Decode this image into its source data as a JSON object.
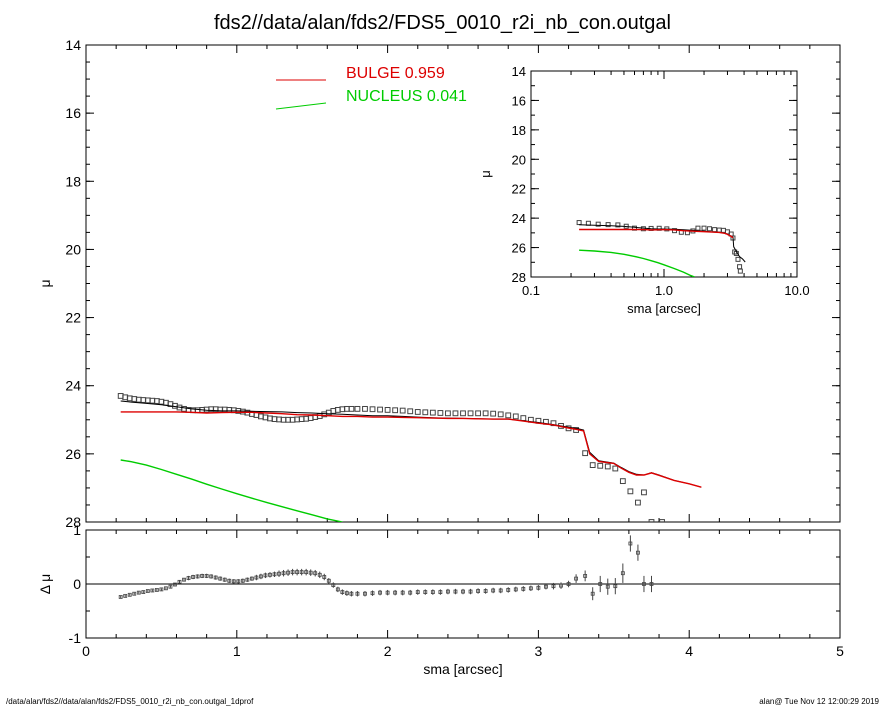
{
  "title": "fds2//data/alan/fds2/FDS5_0010_r2i_nb_con.outgal",
  "footer_left": "/data/alan/fds2//data/alan/fds2/FDS5_0010_r2i_nb_con.outgal_1dprof",
  "footer_right": "alan@  Tue Nov 12 12:00:29 2019",
  "colors": {
    "bulge": "#dd0000",
    "nucleus": "#00cc00",
    "total": "#000000",
    "data": "#444444"
  },
  "chart_data": [
    {
      "id": "main",
      "type": "scatter",
      "xlabel": "sma [arcsec]",
      "ylabel": "μ",
      "xlim": [
        0,
        5
      ],
      "ylim": [
        28,
        14
      ],
      "yticks": [
        14,
        16,
        18,
        20,
        22,
        24,
        26,
        28
      ],
      "xticks": [
        0,
        1,
        2,
        3,
        4,
        5
      ],
      "legend": [
        {
          "label": "BULGE",
          "value": "0.959",
          "color": "#dd0000"
        },
        {
          "label": "NUCLEUS",
          "value": "0.041",
          "color": "#00cc00"
        }
      ],
      "legend_position": "top-center",
      "series": [
        {
          "name": "data",
          "style": "square-markers",
          "x": [
            0.23,
            0.26,
            0.29,
            0.32,
            0.35,
            0.38,
            0.41,
            0.44,
            0.47,
            0.5,
            0.53,
            0.56,
            0.59,
            0.62,
            0.65,
            0.68,
            0.71,
            0.74,
            0.77,
            0.8,
            0.83,
            0.86,
            0.89,
            0.92,
            0.95,
            0.98,
            1.01,
            1.04,
            1.07,
            1.1,
            1.13,
            1.16,
            1.19,
            1.22,
            1.25,
            1.28,
            1.31,
            1.34,
            1.37,
            1.4,
            1.43,
            1.46,
            1.49,
            1.52,
            1.55,
            1.58,
            1.61,
            1.64,
            1.67,
            1.7,
            1.73,
            1.76,
            1.8,
            1.85,
            1.9,
            1.95,
            2.0,
            2.05,
            2.1,
            2.15,
            2.2,
            2.25,
            2.3,
            2.35,
            2.4,
            2.45,
            2.5,
            2.55,
            2.6,
            2.65,
            2.7,
            2.75,
            2.8,
            2.85,
            2.9,
            2.95,
            3.0,
            3.05,
            3.1,
            3.15,
            3.2,
            3.25,
            3.31,
            3.36,
            3.41,
            3.46,
            3.51,
            3.56,
            3.61,
            3.66,
            3.7,
            3.75,
            3.82
          ],
          "y": [
            24.3,
            24.34,
            24.37,
            24.39,
            24.41,
            24.42,
            24.43,
            24.44,
            24.45,
            24.47,
            24.5,
            24.54,
            24.59,
            24.64,
            24.68,
            24.71,
            24.72,
            24.72,
            24.71,
            24.7,
            24.69,
            24.69,
            24.7,
            24.7,
            24.71,
            24.72,
            24.74,
            24.76,
            24.79,
            24.83,
            24.86,
            24.9,
            24.93,
            24.96,
            24.98,
            24.99,
            25.0,
            25.0,
            25.0,
            24.99,
            24.98,
            24.97,
            24.95,
            24.92,
            24.89,
            24.84,
            24.79,
            24.74,
            24.71,
            24.69,
            24.68,
            24.68,
            24.68,
            24.68,
            24.69,
            24.7,
            24.71,
            24.72,
            24.73,
            24.75,
            24.77,
            24.78,
            24.79,
            24.8,
            24.81,
            24.81,
            24.81,
            24.81,
            24.81,
            24.81,
            24.82,
            24.84,
            24.87,
            24.9,
            24.95,
            25.0,
            25.03,
            25.06,
            25.1,
            25.18,
            25.25,
            25.3,
            25.98,
            26.33,
            26.35,
            26.37,
            26.43,
            26.8,
            27.1,
            27.43,
            27.13,
            28.0,
            28.0
          ]
        },
        {
          "name": "total",
          "style": "line",
          "x": [
            0.23,
            0.3,
            0.4,
            0.5,
            0.6,
            0.7,
            0.8,
            0.9,
            1.0,
            1.1,
            1.2,
            1.3,
            1.4,
            1.5,
            1.6,
            1.7,
            1.8,
            1.9,
            2.0,
            2.1,
            2.2,
            2.3,
            2.4,
            2.5,
            2.6,
            2.7,
            2.8,
            2.9,
            3.0,
            3.1,
            3.2,
            3.25,
            3.3,
            3.34,
            3.4,
            3.5,
            3.55,
            3.6,
            3.65,
            3.7,
            3.75,
            3.8,
            3.9,
            4.0,
            4.08
          ],
          "y": [
            24.45,
            24.48,
            24.52,
            24.56,
            24.62,
            24.68,
            24.72,
            24.74,
            24.74,
            24.75,
            24.76,
            24.77,
            24.79,
            24.8,
            24.82,
            24.84,
            24.86,
            24.88,
            24.88,
            24.9,
            24.92,
            24.94,
            24.95,
            24.96,
            24.97,
            24.98,
            24.98,
            25.03,
            25.08,
            25.14,
            25.22,
            25.25,
            25.3,
            25.95,
            26.2,
            26.27,
            26.4,
            26.52,
            26.6,
            26.62,
            26.55,
            26.62,
            26.78,
            26.88,
            26.98
          ]
        },
        {
          "name": "bulge",
          "style": "line",
          "color": "#dd0000",
          "x": [
            0.23,
            0.3,
            0.4,
            0.5,
            0.6,
            0.7,
            0.8,
            0.9,
            1.0,
            1.1,
            1.2,
            1.3,
            1.4,
            1.5,
            1.6,
            1.7,
            1.8,
            1.9,
            2.0,
            2.1,
            2.2,
            2.3,
            2.4,
            2.5,
            2.6,
            2.7,
            2.8,
            2.9,
            3.0,
            3.1,
            3.2,
            3.25,
            3.3,
            3.34,
            3.4,
            3.5,
            3.55,
            3.6,
            3.65,
            3.7,
            3.75,
            3.8,
            3.9,
            4.0,
            4.08
          ],
          "y": [
            24.77,
            24.77,
            24.77,
            24.77,
            24.77,
            24.78,
            24.8,
            24.79,
            24.78,
            24.78,
            24.8,
            24.82,
            24.85,
            24.86,
            24.88,
            24.9,
            24.9,
            24.92,
            24.92,
            24.93,
            24.94,
            24.95,
            24.96,
            24.96,
            24.97,
            24.98,
            24.98,
            25.04,
            25.1,
            25.15,
            25.24,
            25.28,
            25.33,
            26.0,
            26.22,
            26.28,
            26.42,
            26.54,
            26.62,
            26.62,
            26.56,
            26.63,
            26.78,
            26.88,
            26.98
          ]
        },
        {
          "name": "nucleus",
          "style": "line",
          "color": "#00cc00",
          "x": [
            0.23,
            0.3,
            0.4,
            0.5,
            0.6,
            0.7,
            0.8,
            0.9,
            1.0,
            1.1,
            1.2,
            1.3,
            1.4,
            1.5,
            1.6,
            1.7
          ],
          "y": [
            26.18,
            26.23,
            26.33,
            26.46,
            26.6,
            26.74,
            26.89,
            27.03,
            27.17,
            27.3,
            27.43,
            27.55,
            27.67,
            27.79,
            27.91,
            28.0
          ]
        }
      ]
    },
    {
      "id": "inset",
      "type": "line",
      "xlabel": "sma [arcsec]",
      "ylabel": "μ",
      "xscale": "log",
      "xlim": [
        0.1,
        10
      ],
      "ylim": [
        28,
        14
      ],
      "xticks": [
        {
          "v": 0.1,
          "label": "0.1"
        },
        {
          "v": 1,
          "label": "1.0"
        },
        {
          "v": 10,
          "label": "10.0"
        }
      ],
      "yticks": [
        14,
        16,
        18,
        20,
        22,
        24,
        26,
        28
      ],
      "series": [
        {
          "name": "data",
          "style": "square-markers",
          "x": [
            0.23,
            0.27,
            0.32,
            0.38,
            0.45,
            0.52,
            0.6,
            0.7,
            0.8,
            0.92,
            1.05,
            1.2,
            1.35,
            1.5,
            1.65,
            1.8,
            2.0,
            2.2,
            2.4,
            2.6,
            2.8,
            3.0,
            3.2,
            3.3,
            3.4,
            3.5,
            3.6,
            3.7,
            3.75
          ],
          "y": [
            24.3,
            24.35,
            24.41,
            24.44,
            24.46,
            24.55,
            24.68,
            24.72,
            24.7,
            24.69,
            24.73,
            24.85,
            24.96,
            24.99,
            24.87,
            24.68,
            24.68,
            24.72,
            24.78,
            24.81,
            24.83,
            24.93,
            25.08,
            25.35,
            26.3,
            26.4,
            26.8,
            27.3,
            27.6
          ]
        },
        {
          "name": "total",
          "style": "line",
          "x": [
            0.23,
            0.3,
            0.4,
            0.5,
            0.6,
            0.7,
            0.8,
            0.9,
            1.0,
            1.2,
            1.4,
            1.6,
            1.8,
            2.0,
            2.3,
            2.6,
            2.9,
            3.2,
            3.3,
            3.34,
            3.5,
            3.7,
            3.9,
            4.08
          ],
          "y": [
            24.45,
            24.48,
            24.52,
            24.56,
            24.62,
            24.68,
            24.72,
            24.74,
            24.74,
            24.76,
            24.79,
            24.82,
            24.86,
            24.88,
            24.94,
            24.97,
            25.03,
            25.22,
            25.3,
            25.95,
            26.27,
            26.62,
            26.78,
            26.98
          ]
        },
        {
          "name": "bulge",
          "style": "line",
          "color": "#dd0000",
          "x": [
            0.23,
            0.3,
            0.4,
            0.5,
            0.6,
            0.7,
            0.8,
            0.9,
            1.0,
            1.2,
            1.4,
            1.6,
            1.8,
            2.0,
            2.3,
            2.6,
            2.9,
            3.2,
            3.3
          ],
          "y": [
            24.77,
            24.77,
            24.77,
            24.77,
            24.77,
            24.78,
            24.8,
            24.79,
            24.78,
            24.8,
            24.85,
            24.88,
            24.9,
            24.92,
            24.95,
            24.97,
            25.04,
            25.24,
            25.33
          ]
        },
        {
          "name": "nucleus",
          "style": "line",
          "color": "#00cc00",
          "x": [
            0.23,
            0.3,
            0.4,
            0.5,
            0.6,
            0.7,
            0.8,
            0.9,
            1.0,
            1.2,
            1.4,
            1.6,
            1.7
          ],
          "y": [
            26.18,
            26.23,
            26.33,
            26.46,
            26.6,
            26.74,
            26.89,
            27.03,
            27.17,
            27.43,
            27.67,
            27.91,
            28.0
          ]
        }
      ]
    },
    {
      "id": "residual",
      "type": "scatter",
      "xlabel": "sma [arcsec]",
      "ylabel": "Δ μ",
      "xlim": [
        0,
        5
      ],
      "ylim": [
        -1,
        1
      ],
      "yticks": [
        -1,
        0,
        1
      ],
      "xticks": [
        0,
        1,
        2,
        3,
        4,
        5
      ],
      "zero_line": true,
      "series": [
        {
          "name": "residual",
          "style": "markers-with-error-bars",
          "x": [
            0.23,
            0.26,
            0.29,
            0.32,
            0.35,
            0.38,
            0.41,
            0.44,
            0.47,
            0.5,
            0.53,
            0.56,
            0.59,
            0.62,
            0.65,
            0.68,
            0.71,
            0.74,
            0.77,
            0.8,
            0.83,
            0.86,
            0.89,
            0.92,
            0.95,
            0.98,
            1.01,
            1.04,
            1.07,
            1.1,
            1.13,
            1.16,
            1.19,
            1.22,
            1.25,
            1.28,
            1.31,
            1.34,
            1.37,
            1.4,
            1.43,
            1.46,
            1.49,
            1.52,
            1.55,
            1.58,
            1.61,
            1.64,
            1.67,
            1.7,
            1.73,
            1.76,
            1.8,
            1.85,
            1.9,
            1.95,
            2.0,
            2.05,
            2.1,
            2.15,
            2.2,
            2.25,
            2.3,
            2.35,
            2.4,
            2.45,
            2.5,
            2.55,
            2.6,
            2.65,
            2.7,
            2.75,
            2.8,
            2.85,
            2.9,
            2.95,
            3.0,
            3.05,
            3.1,
            3.15,
            3.2,
            3.25,
            3.31,
            3.36,
            3.41,
            3.46,
            3.51,
            3.56,
            3.61,
            3.66,
            3.7,
            3.75
          ],
          "y": [
            -0.24,
            -0.22,
            -0.2,
            -0.18,
            -0.16,
            -0.15,
            -0.13,
            -0.12,
            -0.11,
            -0.1,
            -0.08,
            -0.05,
            -0.01,
            0.04,
            0.08,
            0.11,
            0.13,
            0.14,
            0.15,
            0.15,
            0.14,
            0.12,
            0.1,
            0.08,
            0.06,
            0.05,
            0.05,
            0.06,
            0.08,
            0.1,
            0.12,
            0.14,
            0.16,
            0.17,
            0.18,
            0.19,
            0.2,
            0.21,
            0.22,
            0.22,
            0.22,
            0.22,
            0.21,
            0.2,
            0.17,
            0.13,
            0.06,
            -0.02,
            -0.1,
            -0.15,
            -0.17,
            -0.18,
            -0.18,
            -0.18,
            -0.17,
            -0.16,
            -0.16,
            -0.16,
            -0.16,
            -0.16,
            -0.15,
            -0.15,
            -0.15,
            -0.15,
            -0.14,
            -0.14,
            -0.14,
            -0.14,
            -0.13,
            -0.13,
            -0.12,
            -0.12,
            -0.11,
            -0.1,
            -0.09,
            -0.08,
            -0.07,
            -0.05,
            -0.04,
            -0.03,
            0.0,
            0.1,
            0.15,
            -0.18,
            0.0,
            -0.05,
            -0.04,
            0.2,
            0.75,
            0.58,
            0.0,
            0.0
          ],
          "err": [
            0.02,
            0.02,
            0.02,
            0.02,
            0.02,
            0.02,
            0.02,
            0.02,
            0.02,
            0.02,
            0.02,
            0.02,
            0.03,
            0.03,
            0.03,
            0.04,
            0.04,
            0.04,
            0.04,
            0.04,
            0.04,
            0.04,
            0.04,
            0.04,
            0.04,
            0.04,
            0.04,
            0.04,
            0.04,
            0.04,
            0.05,
            0.05,
            0.05,
            0.05,
            0.05,
            0.06,
            0.06,
            0.06,
            0.06,
            0.06,
            0.06,
            0.06,
            0.06,
            0.06,
            0.06,
            0.06,
            0.05,
            0.05,
            0.05,
            0.05,
            0.05,
            0.05,
            0.05,
            0.05,
            0.05,
            0.05,
            0.05,
            0.05,
            0.05,
            0.05,
            0.05,
            0.05,
            0.05,
            0.05,
            0.05,
            0.05,
            0.05,
            0.05,
            0.05,
            0.05,
            0.05,
            0.05,
            0.05,
            0.05,
            0.05,
            0.05,
            0.05,
            0.05,
            0.06,
            0.06,
            0.06,
            0.08,
            0.1,
            0.12,
            0.15,
            0.15,
            0.15,
            0.18,
            0.15,
            0.15,
            0.15,
            0.15
          ]
        }
      ]
    }
  ]
}
